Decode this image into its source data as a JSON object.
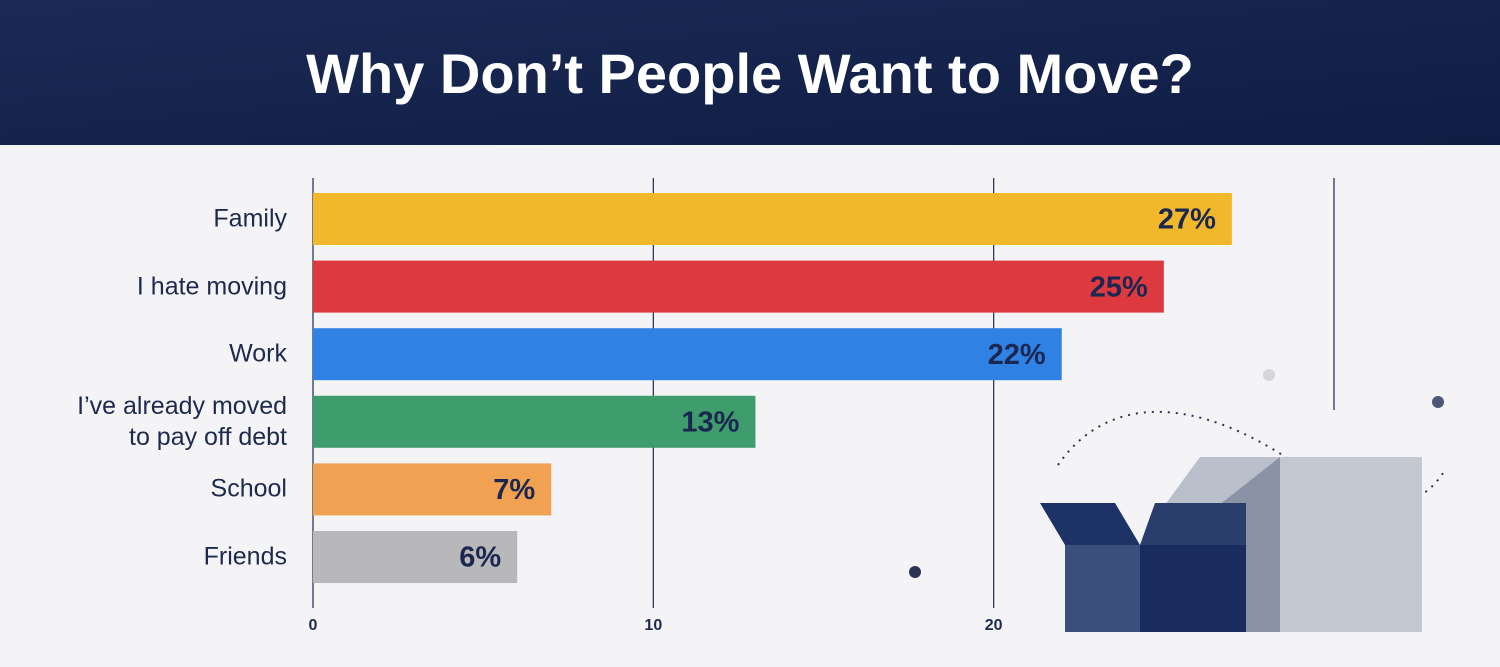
{
  "chart_data": {
    "type": "bar",
    "orientation": "horizontal",
    "title": "Why Don’t People Want to Move?",
    "categories": [
      "Family",
      "I hate moving",
      "Work",
      "I’ve already moved\nto pay off debt",
      "School",
      "Friends"
    ],
    "values": [
      27,
      25,
      22,
      13,
      7,
      6
    ],
    "value_labels": [
      "27%",
      "25%",
      "22%",
      "13%",
      "7%",
      "6%"
    ],
    "colors": [
      "#f2b82c",
      "#dc3a3e",
      "#2f82e3",
      "#3f9c6d",
      "#f0a252",
      "#b8b7ba"
    ],
    "xlim": [
      0,
      30
    ],
    "xticks": [
      0,
      10,
      20
    ],
    "grid": true
  }
}
